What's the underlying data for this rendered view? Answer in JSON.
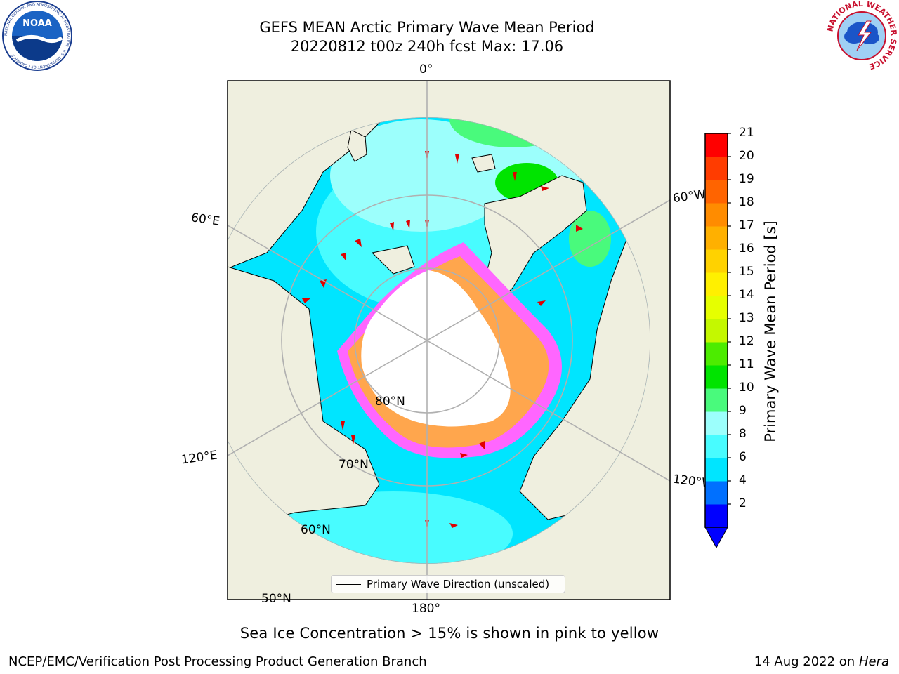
{
  "title": {
    "line1": "GEFS MEAN Arctic Primary Wave Mean Period",
    "line2": "20220812 t00z 240h fcst   Max: 17.06"
  },
  "logos": {
    "noaa_text": "NOAA",
    "noaa_ring_text": "NATIONAL OCEANIC AND ATMOSPHERIC ADMINISTRATION · U.S. DEPARTMENT OF COMMERCE",
    "nws_ring_text": "NATIONAL WEATHER SERVICE"
  },
  "map": {
    "projection": "north polar stereographic",
    "longitude_labels": [
      "0°",
      "60°E",
      "120°E",
      "180°",
      "120°W",
      "60°W"
    ],
    "latitude_labels": [
      "80°N",
      "70°N",
      "60°N",
      "50°N"
    ],
    "colors": {
      "land": "#efefdf",
      "sea_ice_mask": "#ffffff",
      "wave_4_6": "#00e5ff",
      "wave_6_8": "#48fcff",
      "wave_8_9": "#9cfffc",
      "wave_9_10": "#49fa7c",
      "wave_10_11": "#00e400",
      "ice_low": "#ff66ff",
      "ice_high": "#ffa64d",
      "arrow": "#e00000",
      "graticule": "#b0b0b0"
    }
  },
  "legend": {
    "label": "Primary Wave Direction (unscaled)"
  },
  "colorbar": {
    "label": "Primary Wave Mean Period [s]",
    "ticks": [
      "21",
      "20",
      "19",
      "18",
      "17",
      "16",
      "15",
      "14",
      "13",
      "12",
      "11",
      "10",
      "9",
      "8",
      "6",
      "4",
      "2"
    ],
    "colors": [
      "#0000ff",
      "#0070ff",
      "#00e5ff",
      "#48fcff",
      "#9cfffc",
      "#49fa7c",
      "#00e400",
      "#4cec00",
      "#c4f800",
      "#e6ff00",
      "#fff000",
      "#ffd200",
      "#ffb000",
      "#ff8c00",
      "#ff6400",
      "#ff3c00",
      "#ff0000"
    ],
    "extend_color": "#0000ff"
  },
  "note": "Sea Ice Concentration > 15% is shown in pink to yellow",
  "footer": {
    "left": "NCEP/EMC/Verification Post Processing Product Generation Branch",
    "date": "14 Aug 2022 on",
    "machine": "Hera"
  }
}
